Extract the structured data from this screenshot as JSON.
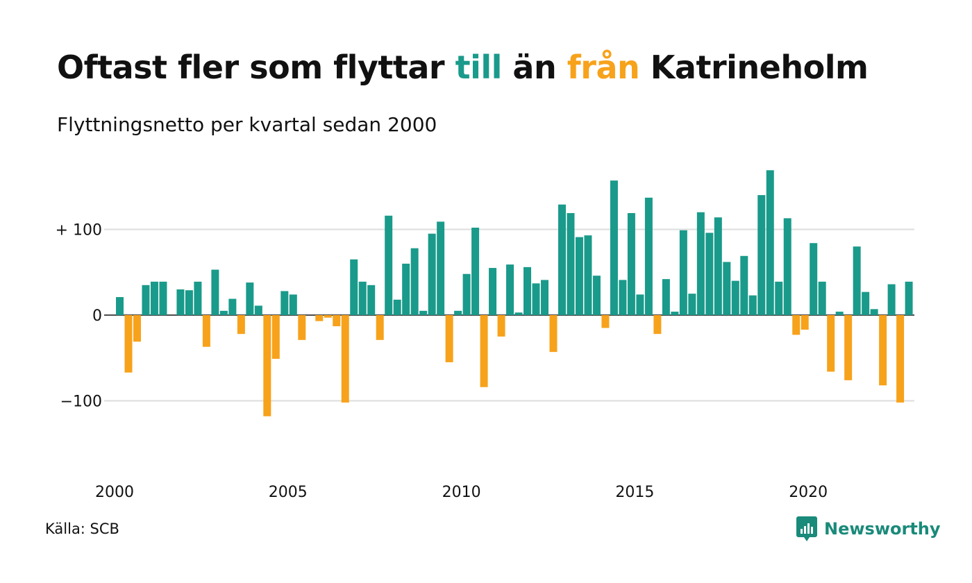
{
  "title": {
    "part1": "Oftast fler som flyttar ",
    "part2": "till",
    "part3": " än ",
    "part4": "från",
    "part5": " Katrineholm"
  },
  "subtitle": "Flyttningsnetto per kvartal sedan 2000",
  "source": "Källa: SCB",
  "brand": "Newsworthy",
  "colors": {
    "positive": "#1a9a8a",
    "negative": "#f7a21b",
    "text": "#111111",
    "grid": "#dddddd",
    "logo": "#1a8a7a"
  },
  "chart_data": {
    "type": "bar",
    "x_start": "2000 Q1",
    "x_ticks": [
      {
        "value": 2000,
        "label": "2000"
      },
      {
        "value": 2005,
        "label": "2005"
      },
      {
        "value": 2010,
        "label": "2010"
      },
      {
        "value": 2015,
        "label": "2015"
      },
      {
        "value": 2020,
        "label": "2020"
      }
    ],
    "y_ticks": [
      {
        "value": 100,
        "label": "+ 100"
      },
      {
        "value": 0,
        "label": "0"
      },
      {
        "value": -100,
        "label": "−100"
      }
    ],
    "ylim": [
      -185,
      170
    ],
    "grid": true,
    "values": [
      21,
      -67,
      -31,
      35,
      39,
      39,
      0,
      30,
      29,
      39,
      -37,
      53,
      5,
      19,
      -22,
      38,
      11,
      -118,
      -51,
      28,
      24,
      -29,
      0,
      -7,
      -3,
      -13,
      -102,
      65,
      39,
      35,
      -29,
      116,
      18,
      60,
      78,
      5,
      95,
      109,
      -55,
      5,
      48,
      102,
      -84,
      55,
      -25,
      59,
      3,
      56,
      37,
      41,
      -43,
      129,
      119,
      91,
      93,
      46,
      -15,
      157,
      41,
      119,
      24,
      137,
      -22,
      42,
      4,
      99,
      25,
      120,
      96,
      114,
      62,
      40,
      69,
      23,
      140,
      169,
      39,
      113,
      -23,
      -17,
      84,
      39,
      -66,
      4,
      -76,
      80,
      27,
      7,
      -82,
      36,
      -102,
      39
    ]
  }
}
